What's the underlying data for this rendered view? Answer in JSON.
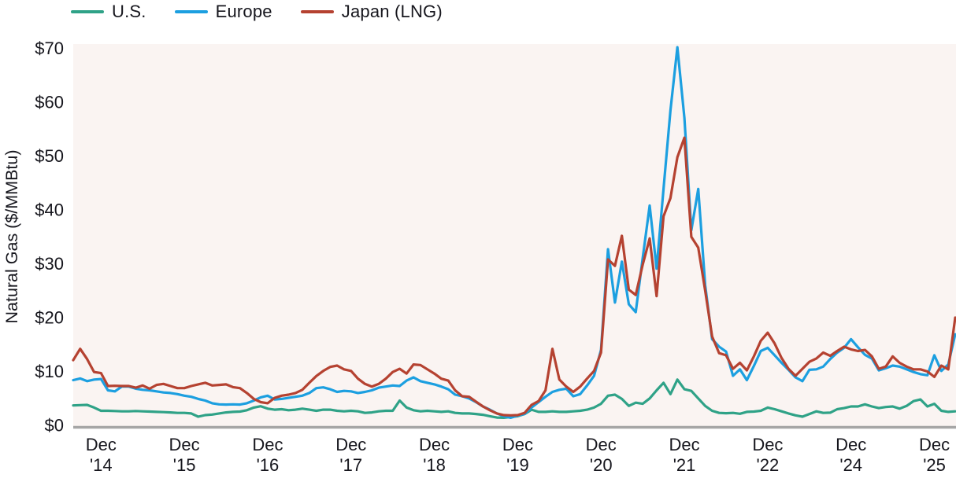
{
  "legend": {
    "items": [
      {
        "label": "U.S."
      },
      {
        "label": "Europe"
      },
      {
        "label": "Japan (LNG)"
      }
    ]
  },
  "colors": {
    "us": "#2fa287",
    "europe": "#1c9fe0",
    "japan": "#b54231",
    "plot_bg": "#faf4f2",
    "axis_line": "#a6a6a6",
    "text": "#16161d"
  },
  "chart_data": {
    "type": "line",
    "title": "",
    "xlabel": "",
    "ylabel": "Natural Gas ($/MMBtu)",
    "ylim": [
      0,
      70
    ],
    "grid": false,
    "legend_position": "top-left",
    "y_tick_values": [
      0,
      10,
      20,
      30,
      40,
      50,
      60,
      70
    ],
    "y_tick_labels": [
      "$0",
      "$10",
      "$20",
      "$30",
      "$40",
      "$50",
      "$60",
      "$70"
    ],
    "x_tick_labels": [
      "Dec '14",
      "Dec '15",
      "Dec '16",
      "Dec '17",
      "Dec '18",
      "Dec '19",
      "Dec '20",
      "Dec '21",
      "Dec '22",
      "Dec '24",
      "Dec '25"
    ],
    "x_tick_month": "Dec",
    "x_tick_years": [
      "'14",
      "'15",
      "'16",
      "'17",
      "'18",
      "'19",
      "'20",
      "'21",
      "'22",
      "'24",
      "'25"
    ],
    "x_tick_month_index": [
      4,
      16,
      28,
      40,
      52,
      64,
      76,
      88,
      100,
      112,
      124
    ],
    "points_per_series": 128,
    "series": [
      {
        "name": "U.S.",
        "color": "#2fa287",
        "values": [
          3.7,
          3.75,
          3.8,
          3.3,
          2.7,
          2.7,
          2.65,
          2.6,
          2.6,
          2.65,
          2.6,
          2.55,
          2.5,
          2.45,
          2.4,
          2.3,
          2.3,
          2.2,
          1.6,
          1.9,
          2.0,
          2.2,
          2.4,
          2.5,
          2.55,
          2.8,
          3.3,
          3.55,
          3.1,
          2.9,
          3.0,
          2.8,
          2.9,
          3.1,
          2.9,
          2.7,
          2.9,
          2.9,
          2.7,
          2.6,
          2.7,
          2.6,
          2.3,
          2.4,
          2.6,
          2.7,
          2.7,
          4.6,
          3.3,
          2.8,
          2.6,
          2.7,
          2.6,
          2.5,
          2.6,
          2.3,
          2.2,
          2.2,
          2.1,
          1.95,
          1.7,
          1.45,
          1.4,
          1.55,
          1.7,
          2.1,
          2.9,
          2.5,
          2.5,
          2.6,
          2.5,
          2.5,
          2.6,
          2.7,
          2.9,
          3.3,
          4.0,
          5.5,
          5.7,
          4.9,
          3.6,
          4.2,
          4.0,
          5.0,
          6.5,
          7.9,
          5.8,
          8.5,
          6.7,
          6.4,
          5.0,
          3.6,
          2.7,
          2.3,
          2.25,
          2.3,
          2.15,
          2.5,
          2.55,
          2.7,
          3.3,
          3.0,
          2.6,
          2.2,
          1.85,
          1.6,
          2.1,
          2.6,
          2.3,
          2.35,
          3.0,
          3.2,
          3.5,
          3.5,
          3.9,
          3.5,
          3.2,
          3.4,
          3.5,
          3.1,
          3.6,
          4.5,
          4.8,
          3.5,
          4.0,
          2.7,
          2.5,
          2.6
        ]
      },
      {
        "name": "Europe",
        "color": "#1c9fe0",
        "values": [
          8.4,
          8.7,
          8.2,
          8.5,
          8.6,
          6.5,
          6.3,
          7.2,
          7.2,
          6.8,
          6.6,
          6.5,
          6.3,
          6.1,
          6.0,
          5.8,
          5.5,
          5.3,
          4.9,
          4.6,
          4.1,
          3.9,
          3.85,
          3.9,
          3.85,
          4.1,
          4.6,
          5.2,
          5.5,
          4.8,
          4.9,
          5.1,
          5.3,
          5.5,
          6.0,
          6.9,
          7.05,
          6.7,
          6.2,
          6.4,
          6.3,
          6.0,
          6.2,
          6.5,
          7.0,
          7.2,
          7.4,
          7.3,
          8.3,
          8.9,
          8.2,
          7.9,
          7.6,
          7.2,
          6.7,
          5.7,
          5.4,
          5.0,
          4.3,
          3.5,
          2.9,
          2.2,
          1.7,
          1.4,
          1.8,
          2.1,
          3.3,
          4.3,
          5.3,
          6.2,
          6.6,
          6.8,
          5.4,
          5.8,
          7.4,
          9.2,
          14.0,
          32.7,
          22.8,
          30.4,
          22.5,
          21.0,
          31.0,
          40.8,
          29.1,
          43.9,
          58.5,
          70.2,
          57.1,
          36.2,
          43.9,
          26.0,
          16.0,
          14.6,
          13.7,
          9.2,
          10.4,
          8.4,
          11.0,
          13.8,
          14.4,
          13.0,
          11.6,
          10.3,
          8.9,
          8.2,
          10.3,
          10.4,
          10.9,
          12.3,
          13.5,
          14.4,
          16.0,
          14.5,
          13.1,
          12.4,
          10.2,
          10.6,
          11.1,
          10.9,
          10.4,
          9.9,
          9.5,
          9.3,
          13.0,
          10.1,
          11.3,
          16.9
        ]
      },
      {
        "name": "Japan (LNG)",
        "color": "#b54231",
        "values": [
          12.1,
          14.2,
          12.3,
          9.9,
          9.7,
          7.3,
          7.35,
          7.3,
          7.3,
          7.0,
          7.4,
          6.8,
          7.5,
          7.7,
          7.3,
          6.9,
          6.9,
          7.3,
          7.6,
          7.9,
          7.4,
          7.5,
          7.6,
          7.1,
          6.9,
          6.0,
          4.9,
          4.3,
          4.1,
          5.1,
          5.5,
          5.7,
          6.0,
          6.6,
          7.9,
          9.15,
          10.1,
          10.85,
          11.1,
          10.4,
          10.1,
          8.65,
          7.7,
          7.2,
          7.7,
          8.65,
          9.9,
          10.5,
          9.6,
          11.3,
          11.2,
          10.4,
          9.6,
          8.65,
          8.3,
          6.5,
          5.4,
          5.3,
          4.4,
          3.5,
          2.8,
          2.2,
          1.9,
          1.85,
          1.9,
          2.3,
          3.8,
          4.5,
          6.5,
          14.2,
          8.5,
          7.2,
          6.2,
          7.2,
          8.7,
          10.1,
          13.5,
          30.8,
          29.6,
          35.2,
          25.2,
          24.2,
          29.8,
          34.7,
          24.0,
          38.8,
          42.2,
          49.8,
          53.4,
          35.0,
          33.0,
          25.0,
          16.5,
          13.4,
          13.0,
          10.5,
          11.6,
          10.2,
          12.8,
          15.7,
          17.2,
          15.2,
          12.5,
          10.5,
          9.2,
          10.5,
          11.8,
          12.4,
          13.5,
          12.9,
          13.8,
          14.6,
          14.1,
          13.8,
          14.0,
          12.8,
          10.5,
          10.9,
          12.8,
          11.6,
          10.9,
          10.4,
          10.4,
          10.0,
          9.0,
          11.1,
          10.4,
          20.0
        ]
      }
    ]
  }
}
